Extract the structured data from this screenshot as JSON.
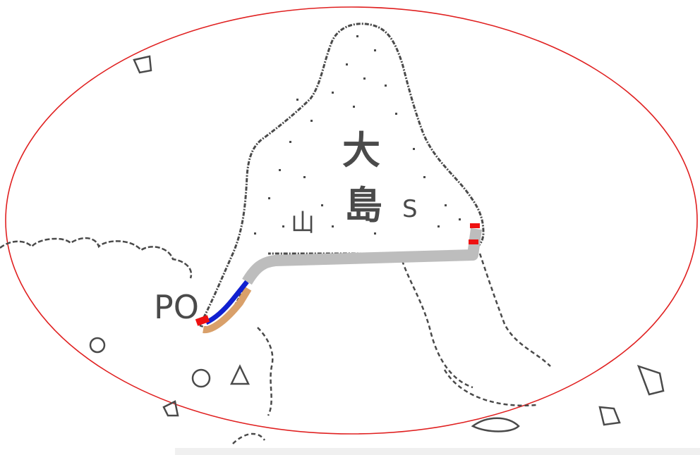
{
  "map": {
    "labels": {
      "island_char_1": "大",
      "island_char_2": "島",
      "mountain_char": "山",
      "numeral_s": "S",
      "po_text": "PO"
    },
    "colors": {
      "outline": "#4a4a4a",
      "ellipse": "#e02020",
      "road": "#bdbdbd",
      "route_blue": "#1020d0",
      "route_tan": "#d9a06a",
      "marker_red": "#ee1111"
    },
    "icons": {
      "start_marker": "red-route-endpoint-icon",
      "end_marker": "red-route-endpoint-icon"
    }
  }
}
